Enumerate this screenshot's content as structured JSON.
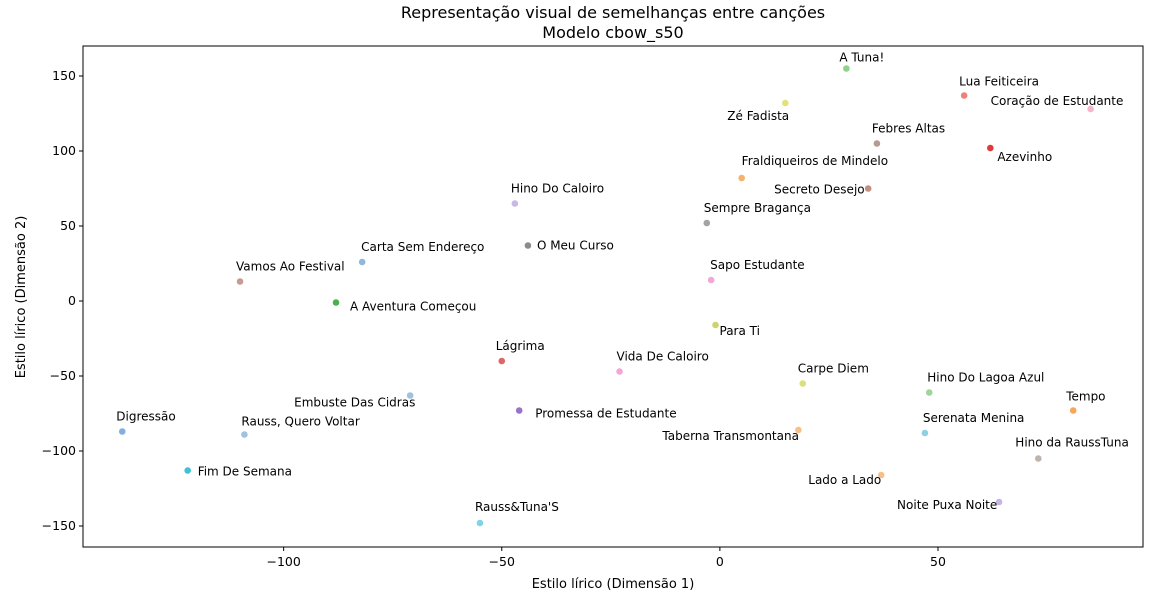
{
  "chart_data": {
    "type": "scatter",
    "title": "Representação visual de semelhanças entre canções",
    "subtitle": "Modelo cbow_s50",
    "xlabel": "Estilo lírico (Dimensão 1)",
    "ylabel": "Estilo lírico (Dimensão 2)",
    "xlim": [
      -146,
      97
    ],
    "ylim": [
      -164,
      170
    ],
    "xticks": [
      -100,
      -50,
      0,
      50
    ],
    "yticks": [
      -150,
      -100,
      -50,
      0,
      50,
      100,
      150
    ],
    "xtick_labels": [
      "−100",
      "−50",
      "0",
      "50"
    ],
    "ytick_labels": [
      "−150",
      "−100",
      "−50",
      "0",
      "50",
      "100",
      "150"
    ],
    "grid": false,
    "legend": "none",
    "points": [
      {
        "label": "A Tuna!",
        "x": 29,
        "y": 155,
        "color": "#8fd18a"
      },
      {
        "label": "Lua Feiticeira",
        "x": 56,
        "y": 137,
        "color": "#f08080"
      },
      {
        "label": "Zé Fadista",
        "x": 15,
        "y": 132,
        "color": "#e6e07a"
      },
      {
        "label": "Coração de Estudante",
        "x": 85,
        "y": 128,
        "color": "#f7b6c8"
      },
      {
        "label": "Febres Altas",
        "x": 36,
        "y": 105,
        "color": "#b89a8e"
      },
      {
        "label": "Azevinho",
        "x": 62,
        "y": 102,
        "color": "#e03b3b"
      },
      {
        "label": "Fraldiqueiros de Mindelo",
        "x": 5,
        "y": 82,
        "color": "#f7b26a"
      },
      {
        "label": "Secreto Desejo",
        "x": 34,
        "y": 75,
        "color": "#c28f80"
      },
      {
        "label": "Hino Do Caloiro",
        "x": -47,
        "y": 65,
        "color": "#c7b8e6"
      },
      {
        "label": "Sempre Bragança",
        "x": -3,
        "y": 52,
        "color": "#a3a3a3"
      },
      {
        "label": "O Meu Curso",
        "x": -44,
        "y": 37,
        "color": "#8c8c8c"
      },
      {
        "label": "Carta Sem Endereço",
        "x": -82,
        "y": 26,
        "color": "#8fb8dc"
      },
      {
        "label": "Vamos Ao Festival",
        "x": -110,
        "y": 13,
        "color": "#c79b8f"
      },
      {
        "label": "Sapo Estudante",
        "x": -2,
        "y": 14,
        "color": "#f2a7d8"
      },
      {
        "label": "A Aventura Começou",
        "x": -88,
        "y": -1,
        "color": "#4caf50"
      },
      {
        "label": "Para Ti",
        "x": -1,
        "y": -16,
        "color": "#cfd36a"
      },
      {
        "label": "Lágrima",
        "x": -50,
        "y": -40,
        "color": "#e06666"
      },
      {
        "label": "Vida De Caloiro",
        "x": -23,
        "y": -47,
        "color": "#f2a7d8"
      },
      {
        "label": "Carpe Diem",
        "x": 19,
        "y": -55,
        "color": "#dbe07a"
      },
      {
        "label": "Hino Do Lagoa Azul",
        "x": 48,
        "y": -61,
        "color": "#9fd49a"
      },
      {
        "label": "Embuste Das Cidras",
        "x": -71,
        "y": -63,
        "color": "#9ec2e0"
      },
      {
        "label": "Tempo",
        "x": 81,
        "y": -73,
        "color": "#f7a65a"
      },
      {
        "label": "Promessa de Estudante",
        "x": -46,
        "y": -73,
        "color": "#9b72c9"
      },
      {
        "label": "Digressão",
        "x": -137,
        "y": -87,
        "color": "#7fb0e0"
      },
      {
        "label": "Rauss, Quero Voltar",
        "x": -109,
        "y": -89,
        "color": "#9ec2e0"
      },
      {
        "label": "Taberna Transmontana",
        "x": 18,
        "y": -86,
        "color": "#f7c08a"
      },
      {
        "label": "Serenata Menina",
        "x": 47,
        "y": -88,
        "color": "#8ed0e6"
      },
      {
        "label": "Hino da RaussTuna",
        "x": 73,
        "y": -105,
        "color": "#bfb3ad"
      },
      {
        "label": "Fim De Semana",
        "x": -122,
        "y": -113,
        "color": "#3fc1d6"
      },
      {
        "label": "Lado a Lado",
        "x": 37,
        "y": -116,
        "color": "#f7c08a"
      },
      {
        "label": "Noite Puxa Noite",
        "x": 64,
        "y": -134,
        "color": "#c7b3e6"
      },
      {
        "label": "Rauss&Tuna'S",
        "x": -55,
        "y": -148,
        "color": "#7fd4e6"
      }
    ]
  }
}
